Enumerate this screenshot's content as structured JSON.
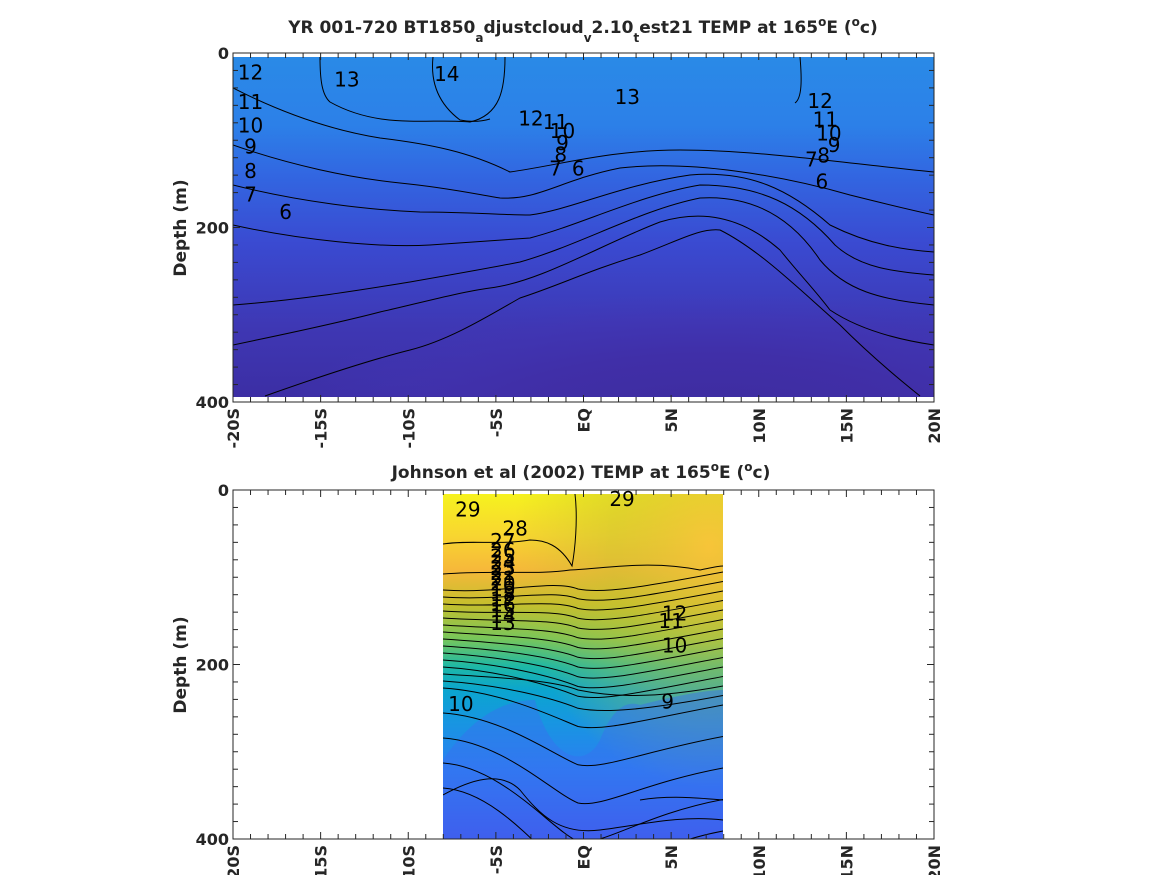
{
  "chart_data": [
    {
      "type": "heatmap",
      "title": {
        "main": "YR 001-720 BT1850",
        "sub1": "a",
        "mid1": "djustcloud",
        "sub2": "v",
        "mid2": "2.10",
        "sub3": "t",
        "mid3": "est21 TEMP at 165",
        "sup1": "o",
        "mid4": "E (",
        "sup2": "o",
        "tail": "c)"
      },
      "ylabel": "Depth (m)",
      "xlabel": "",
      "x_ticklabels": [
        "-20S",
        "-15S",
        "-10S",
        "-5S",
        "EQ",
        "5N",
        "10N",
        "15N",
        "20N"
      ],
      "x_tick_values": [
        -20,
        -15,
        -10,
        -5,
        0,
        5,
        10,
        15,
        20
      ],
      "y_ticklabels": [
        "0",
        "200",
        "400"
      ],
      "y_tick_values": [
        0,
        200,
        400
      ],
      "xlim": [
        -20,
        20
      ],
      "ylim": [
        400,
        0
      ],
      "y_reversed": true,
      "colormap": "parula",
      "contour_levels": [
        6,
        7,
        8,
        9,
        10,
        11,
        12,
        13,
        14
      ],
      "contour_labels": [
        {
          "text": "12",
          "x": -19.0,
          "depth": 28
        },
        {
          "text": "13",
          "x": -13.5,
          "depth": 36
        },
        {
          "text": "14",
          "x": -7.8,
          "depth": 30
        },
        {
          "text": "13",
          "x": 2.5,
          "depth": 56
        },
        {
          "text": "12",
          "x": 13.5,
          "depth": 61
        },
        {
          "text": "11",
          "x": -19.0,
          "depth": 62
        },
        {
          "text": "11",
          "x": 13.8,
          "depth": 82
        },
        {
          "text": "12",
          "x": -3.0,
          "depth": 81
        },
        {
          "text": "11",
          "x": -1.6,
          "depth": 85
        },
        {
          "text": "10",
          "x": -1.2,
          "depth": 95
        },
        {
          "text": "9",
          "x": -1.2,
          "depth": 109
        },
        {
          "text": "10",
          "x": -19.0,
          "depth": 89
        },
        {
          "text": "10",
          "x": 14.0,
          "depth": 98
        },
        {
          "text": "9",
          "x": -19.0,
          "depth": 113
        },
        {
          "text": "9",
          "x": 14.3,
          "depth": 111
        },
        {
          "text": "8",
          "x": -1.3,
          "depth": 122
        },
        {
          "text": "8",
          "x": 13.7,
          "depth": 123
        },
        {
          "text": "8",
          "x": -19.0,
          "depth": 141
        },
        {
          "text": "7",
          "x": -1.6,
          "depth": 138
        },
        {
          "text": "7",
          "x": 13.0,
          "depth": 128
        },
        {
          "text": "7",
          "x": -19.0,
          "depth": 168
        },
        {
          "text": "6",
          "x": -0.3,
          "depth": 138
        },
        {
          "text": "6",
          "x": 13.6,
          "depth": 153
        },
        {
          "text": "6",
          "x": -17.0,
          "depth": 188
        }
      ]
    },
    {
      "type": "heatmap",
      "title": {
        "main": "Johnson et al (2002) TEMP at 165",
        "sup1": "o",
        "mid1": "E (",
        "sup2": "o",
        "tail": "c)"
      },
      "ylabel": "Depth (m)",
      "xlabel": "",
      "x_ticklabels": [
        "-20S",
        "-15S",
        "-10S",
        "-5S",
        "EQ",
        "5N",
        "10N",
        "15N",
        "20N"
      ],
      "x_tick_values": [
        -20,
        -15,
        -10,
        -5,
        0,
        5,
        10,
        15,
        20
      ],
      "y_ticklabels": [
        "0",
        "200",
        "400"
      ],
      "y_tick_values": [
        0,
        200,
        400
      ],
      "xlim": [
        -20,
        20
      ],
      "ylim": [
        400,
        0
      ],
      "y_reversed": true,
      "data_x_range": [
        -8,
        8
      ],
      "colormap": "parula",
      "contour_levels": [
        9,
        10,
        11,
        12,
        13,
        14,
        15,
        16,
        17,
        18,
        19,
        20,
        21,
        22,
        23,
        24,
        25,
        26,
        27,
        28,
        29
      ],
      "contour_labels": [
        {
          "text": "29",
          "x": -6.6,
          "depth": 28
        },
        {
          "text": "29",
          "x": 2.2,
          "depth": 16
        },
        {
          "text": "28",
          "x": -3.9,
          "depth": 50
        },
        {
          "text": "27",
          "x": -4.6,
          "depth": 64
        },
        {
          "text": "26",
          "x": -4.6,
          "depth": 75
        },
        {
          "text": "25",
          "x": -4.6,
          "depth": 82
        },
        {
          "text": "24",
          "x": -4.6,
          "depth": 89
        },
        {
          "text": "23",
          "x": -4.6,
          "depth": 95
        },
        {
          "text": "22",
          "x": -4.6,
          "depth": 101
        },
        {
          "text": "21",
          "x": -4.6,
          "depth": 107
        },
        {
          "text": "20",
          "x": -4.6,
          "depth": 113
        },
        {
          "text": "19",
          "x": -4.6,
          "depth": 119
        },
        {
          "text": "18",
          "x": -4.6,
          "depth": 125
        },
        {
          "text": "17",
          "x": -4.6,
          "depth": 131
        },
        {
          "text": "16",
          "x": -4.6,
          "depth": 137
        },
        {
          "text": "15",
          "x": -4.6,
          "depth": 143
        },
        {
          "text": "14",
          "x": -4.6,
          "depth": 150
        },
        {
          "text": "13",
          "x": -4.6,
          "depth": 158
        },
        {
          "text": "12",
          "x": 5.2,
          "depth": 147
        },
        {
          "text": "11",
          "x": 5.0,
          "depth": 156
        },
        {
          "text": "10",
          "x": 5.2,
          "depth": 184
        },
        {
          "text": "10",
          "x": -7.0,
          "depth": 251
        },
        {
          "text": "9",
          "x": 4.8,
          "depth": 248
        }
      ]
    }
  ]
}
